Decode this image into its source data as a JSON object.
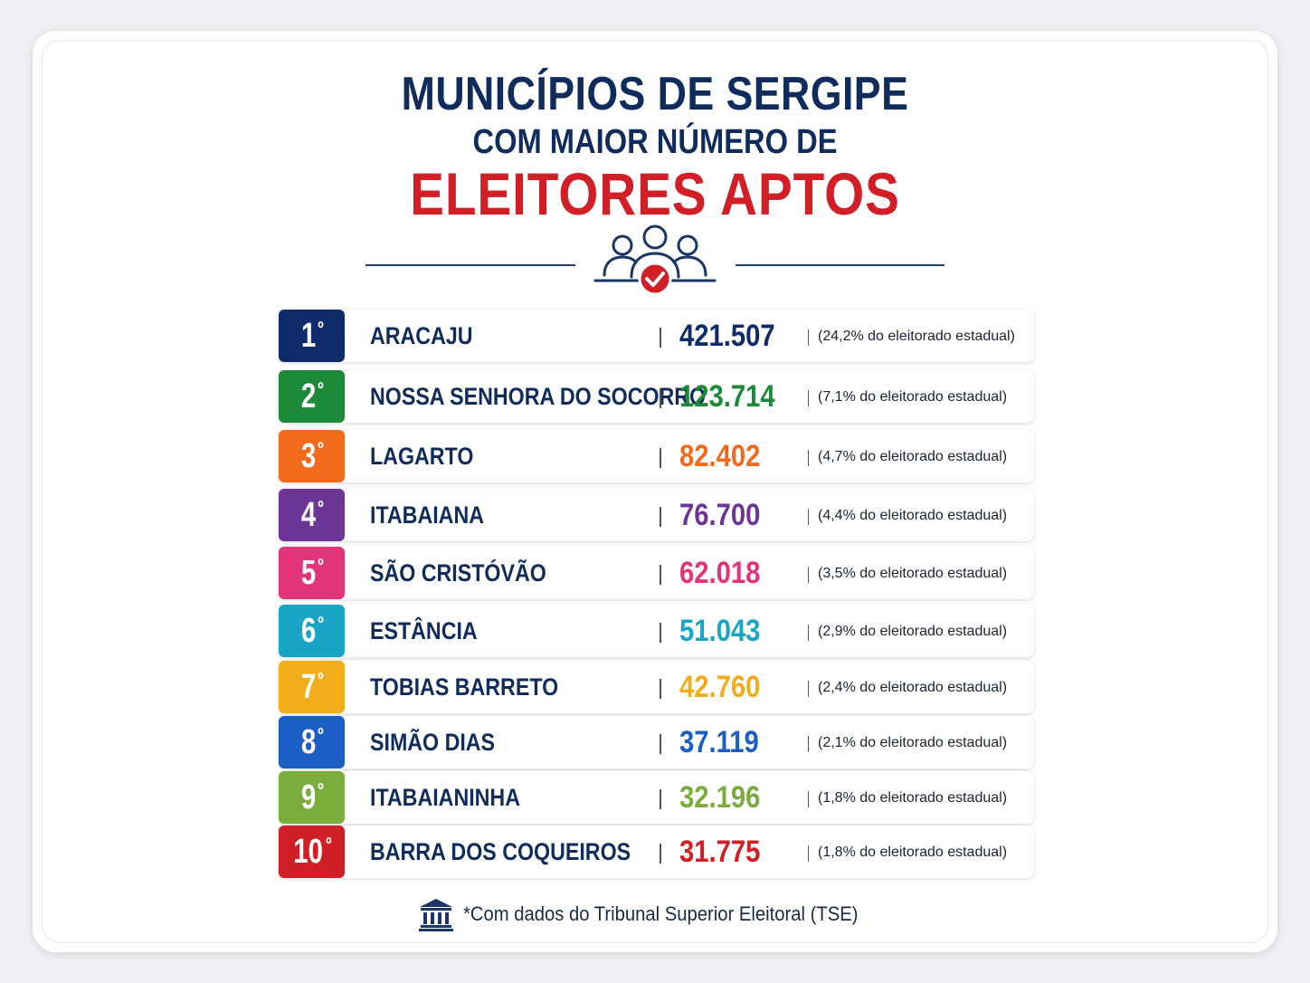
{
  "title": {
    "line1": "MUNICÍPIOS DE SERGIPE",
    "line2": "COM MAIOR NÚMERO DE",
    "line3": "ELEITORES APTOS"
  },
  "header_icon": "voters-check-icon",
  "ranking": [
    {
      "rank": "1",
      "ordinal": "º",
      "city": "ARACAJU",
      "value": "421.507",
      "share": "(24,2% do eleitorado estadual)",
      "color": "#0f2c6a"
    },
    {
      "rank": "2",
      "ordinal": "º",
      "city": "NOSSA SENHORA DO SOCORRO",
      "value": "123.714",
      "share": "(7,1% do eleitorado estadual)",
      "color": "#1d8a3a"
    },
    {
      "rank": "3",
      "ordinal": "º",
      "city": "LAGARTO",
      "value": "82.402",
      "share": "(4,7% do eleitorado estadual)",
      "color": "#f26a1b"
    },
    {
      "rank": "4",
      "ordinal": "º",
      "city": "ITABAIANA",
      "value": "76.700",
      "share": "(4,4% do eleitorado estadual)",
      "color": "#6c3597"
    },
    {
      "rank": "5",
      "ordinal": "º",
      "city": "SÃO CRISTÓVÃO",
      "value": "62.018",
      "share": "(3,5% do eleitorado estadual)",
      "color": "#e1347a"
    },
    {
      "rank": "6",
      "ordinal": "º",
      "city": "ESTÂNCIA",
      "value": "51.043",
      "share": "(2,9% do eleitorado estadual)",
      "color": "#19a6c6"
    },
    {
      "rank": "7",
      "ordinal": "º",
      "city": "TOBIAS BARRETO",
      "value": "42.760",
      "share": "(2,4% do eleitorado estadual)",
      "color": "#f1ad1a"
    },
    {
      "rank": "8",
      "ordinal": "º",
      "city": "SIMÃO DIAS",
      "value": "37.119",
      "share": "(2,1% do eleitorado estadual)",
      "color": "#1c5fc4"
    },
    {
      "rank": "9",
      "ordinal": "º",
      "city": "ITABAIANINHA",
      "value": "32.196",
      "share": "(1,8% do eleitorado estadual)",
      "color": "#7aad3c"
    },
    {
      "rank": "10",
      "ordinal": "º",
      "city": "BARRA DOS COQUEIROS",
      "value": "31.775",
      "share": "(1,8% do eleitorado estadual)",
      "color": "#d01f26"
    }
  ],
  "footer": {
    "icon": "bank-building-icon",
    "note": "*Com dados do Tribunal Superior Eleitoral (TSE)"
  },
  "colors": {
    "navy": "#0f2c5c",
    "red": "#d01f26"
  }
}
